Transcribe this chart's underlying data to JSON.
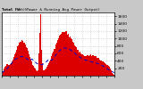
{
  "title": "Total PV  (Power & Running Avg Power Output)",
  "subtitle": "Total (kWh): ---",
  "bg_color": "#c8c8c8",
  "plot_bg": "#ffffff",
  "bar_color": "#dd0000",
  "avg_line_color": "#0000cc",
  "grid_color": "#cccccc",
  "ylim": [
    0,
    1700
  ],
  "ytick_values": [
    200,
    400,
    600,
    800,
    1000,
    1200,
    1400,
    1600
  ],
  "n_bars": 200,
  "seed": 7
}
